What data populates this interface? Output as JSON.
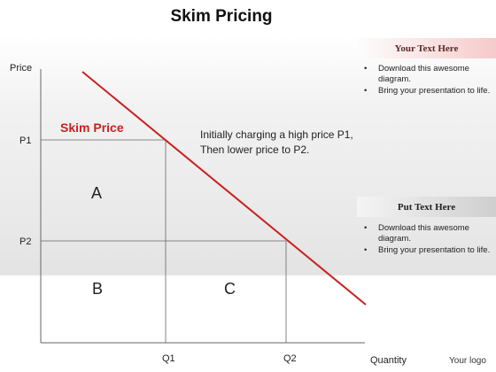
{
  "title": "Skim Pricing",
  "diagram": {
    "y_axis_label": "Price",
    "x_axis_label": "Quantity",
    "price_ticks": [
      "P1",
      "P2"
    ],
    "quantity_ticks": [
      "Q1",
      "Q2"
    ],
    "curve_label": "Skim Price",
    "annotation": [
      "Initially charging a high price P1,",
      "Then lower price to P2."
    ],
    "regions": [
      "A",
      "B",
      "C"
    ],
    "colors": {
      "curve": "#cc1f1f",
      "curve_label": "#cc1f1f",
      "axis": "#666666"
    }
  },
  "panels": [
    {
      "header": "Your Text Here",
      "bullets": [
        "Download this awesome diagram.",
        "Bring your presentation to life."
      ]
    },
    {
      "header": "Put Text Here",
      "bullets": [
        "Download this awesome diagram.",
        "Bring your presentation to life."
      ]
    }
  ],
  "logo": "Your logo"
}
